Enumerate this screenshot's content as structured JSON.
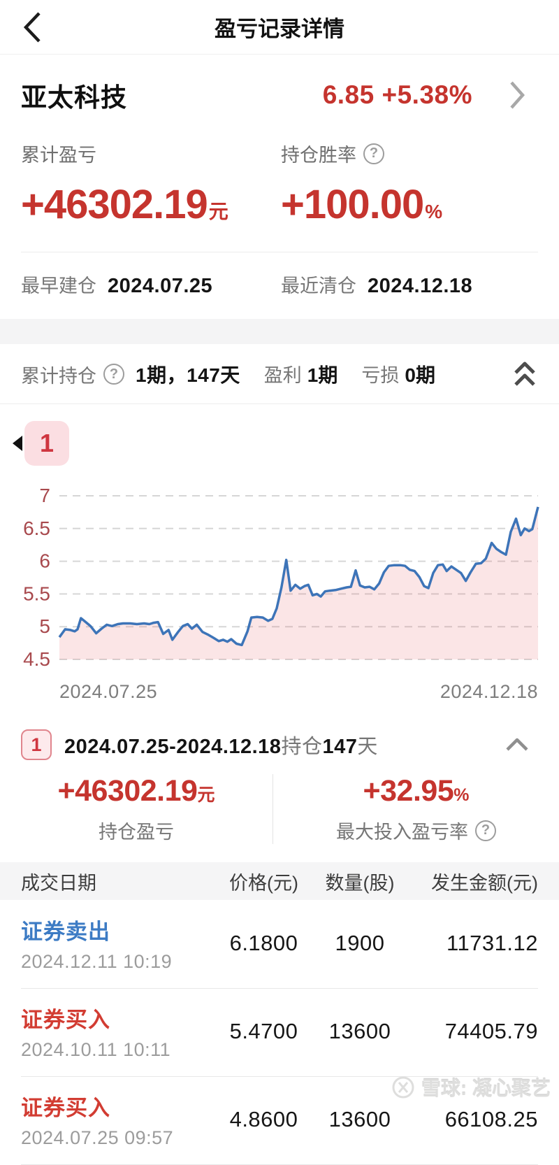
{
  "header": {
    "title": "盈亏记录详情"
  },
  "stock": {
    "name": "亚太科技",
    "quote": "6.85 +5.38%"
  },
  "summary": {
    "pl_label": "累计盈亏",
    "pl_value": "+46302.19",
    "pl_unit": "元",
    "winrate_label": "持仓胜率",
    "winrate_value": "+100.00",
    "winrate_unit": "%",
    "open_label": "最早建仓",
    "open_date": "2024.07.25",
    "close_label": "最近清仓",
    "close_date": "2024.12.18"
  },
  "holdings_bar": {
    "label": "累计持仓",
    "periods": "1期，147天",
    "profit_label": "盈利",
    "profit_value": "1期",
    "loss_label": "亏损",
    "loss_value": "0期"
  },
  "chart_data": {
    "type": "area",
    "badge_label": "1",
    "ylim": [
      4.5,
      7
    ],
    "yticks": [
      7,
      6.5,
      6,
      5.5,
      5,
      4.5
    ],
    "x_labels": [
      "2024.07.25",
      "2024.12.18"
    ],
    "grid": "dashed",
    "series": [
      {
        "name": "股价",
        "points": [
          [
            0.0,
            4.84
          ],
          [
            0.012,
            4.96
          ],
          [
            0.023,
            4.95
          ],
          [
            0.032,
            4.93
          ],
          [
            0.038,
            4.96
          ],
          [
            0.045,
            5.13
          ],
          [
            0.055,
            5.07
          ],
          [
            0.065,
            5.01
          ],
          [
            0.077,
            4.9
          ],
          [
            0.088,
            4.97
          ],
          [
            0.099,
            5.03
          ],
          [
            0.11,
            5.01
          ],
          [
            0.122,
            5.04
          ],
          [
            0.133,
            5.05
          ],
          [
            0.148,
            5.05
          ],
          [
            0.162,
            5.04
          ],
          [
            0.177,
            5.05
          ],
          [
            0.188,
            5.04
          ],
          [
            0.197,
            5.06
          ],
          [
            0.206,
            5.07
          ],
          [
            0.217,
            4.89
          ],
          [
            0.228,
            4.95
          ],
          [
            0.236,
            4.8
          ],
          [
            0.248,
            4.92
          ],
          [
            0.258,
            5.01
          ],
          [
            0.268,
            5.04
          ],
          [
            0.277,
            4.97
          ],
          [
            0.287,
            5.03
          ],
          [
            0.299,
            4.92
          ],
          [
            0.31,
            4.88
          ],
          [
            0.322,
            4.83
          ],
          [
            0.333,
            4.78
          ],
          [
            0.342,
            4.8
          ],
          [
            0.351,
            4.77
          ],
          [
            0.359,
            4.81
          ],
          [
            0.37,
            4.74
          ],
          [
            0.381,
            4.72
          ],
          [
            0.393,
            4.93
          ],
          [
            0.401,
            5.14
          ],
          [
            0.413,
            5.15
          ],
          [
            0.425,
            5.14
          ],
          [
            0.436,
            5.09
          ],
          [
            0.445,
            5.12
          ],
          [
            0.454,
            5.28
          ],
          [
            0.464,
            5.6
          ],
          [
            0.474,
            6.02
          ],
          [
            0.483,
            5.55
          ],
          [
            0.493,
            5.64
          ],
          [
            0.503,
            5.58
          ],
          [
            0.512,
            5.62
          ],
          [
            0.52,
            5.64
          ],
          [
            0.529,
            5.48
          ],
          [
            0.538,
            5.5
          ],
          [
            0.546,
            5.46
          ],
          [
            0.555,
            5.54
          ],
          [
            0.565,
            5.55
          ],
          [
            0.577,
            5.56
          ],
          [
            0.588,
            5.58
          ],
          [
            0.6,
            5.6
          ],
          [
            0.609,
            5.61
          ],
          [
            0.619,
            5.86
          ],
          [
            0.628,
            5.63
          ],
          [
            0.638,
            5.6
          ],
          [
            0.648,
            5.61
          ],
          [
            0.658,
            5.57
          ],
          [
            0.668,
            5.66
          ],
          [
            0.678,
            5.83
          ],
          [
            0.688,
            5.93
          ],
          [
            0.7,
            5.94
          ],
          [
            0.712,
            5.94
          ],
          [
            0.722,
            5.93
          ],
          [
            0.732,
            5.87
          ],
          [
            0.742,
            5.85
          ],
          [
            0.752,
            5.76
          ],
          [
            0.762,
            5.62
          ],
          [
            0.771,
            5.59
          ],
          [
            0.781,
            5.82
          ],
          [
            0.791,
            5.94
          ],
          [
            0.801,
            5.95
          ],
          [
            0.809,
            5.85
          ],
          [
            0.819,
            5.92
          ],
          [
            0.829,
            5.87
          ],
          [
            0.839,
            5.82
          ],
          [
            0.849,
            5.7
          ],
          [
            0.859,
            5.83
          ],
          [
            0.87,
            5.96
          ],
          [
            0.881,
            5.97
          ],
          [
            0.891,
            6.04
          ],
          [
            0.903,
            6.28
          ],
          [
            0.913,
            6.19
          ],
          [
            0.923,
            6.14
          ],
          [
            0.933,
            6.1
          ],
          [
            0.943,
            6.45
          ],
          [
            0.954,
            6.65
          ],
          [
            0.964,
            6.4
          ],
          [
            0.972,
            6.5
          ],
          [
            0.981,
            6.46
          ],
          [
            0.988,
            6.49
          ],
          [
            1.0,
            6.83
          ]
        ]
      }
    ]
  },
  "period": {
    "badge": "1",
    "date_range": "2024.07.25-2024.12.18",
    "hold_label": "持仓",
    "hold_days": "147",
    "hold_unit": "天",
    "pl_value": "+46302.19",
    "pl_unit": "元",
    "pl_label": "持仓盈亏",
    "roi_value": "+32.95",
    "roi_unit": "%",
    "roi_label": "最大投入盈亏率"
  },
  "table": {
    "headers": [
      "成交日期",
      "价格(元)",
      "数量(股)",
      "发生金额(元)"
    ],
    "rows": [
      {
        "action": "证券卖出",
        "type": "sell",
        "datetime": "2024.12.11 10:19",
        "price": "6.1800",
        "qty": "1900",
        "amount": "11731.12"
      },
      {
        "action": "证券买入",
        "type": "buy",
        "datetime": "2024.10.11 10:11",
        "price": "5.4700",
        "qty": "13600",
        "amount": "74405.79"
      },
      {
        "action": "证券买入",
        "type": "buy",
        "datetime": "2024.07.25 09:57",
        "price": "4.8600",
        "qty": "13600",
        "amount": "66108.25"
      }
    ]
  },
  "watermark": {
    "text": "雪球: 凝心聚艺"
  },
  "colors": {
    "accent_red": "#c5342e",
    "buy_red": "#d23c32",
    "sell_blue": "#3c7bc4",
    "line": "#3d74b8",
    "fill": "rgba(233,93,101,0.16)",
    "tick": "#a8494d"
  }
}
